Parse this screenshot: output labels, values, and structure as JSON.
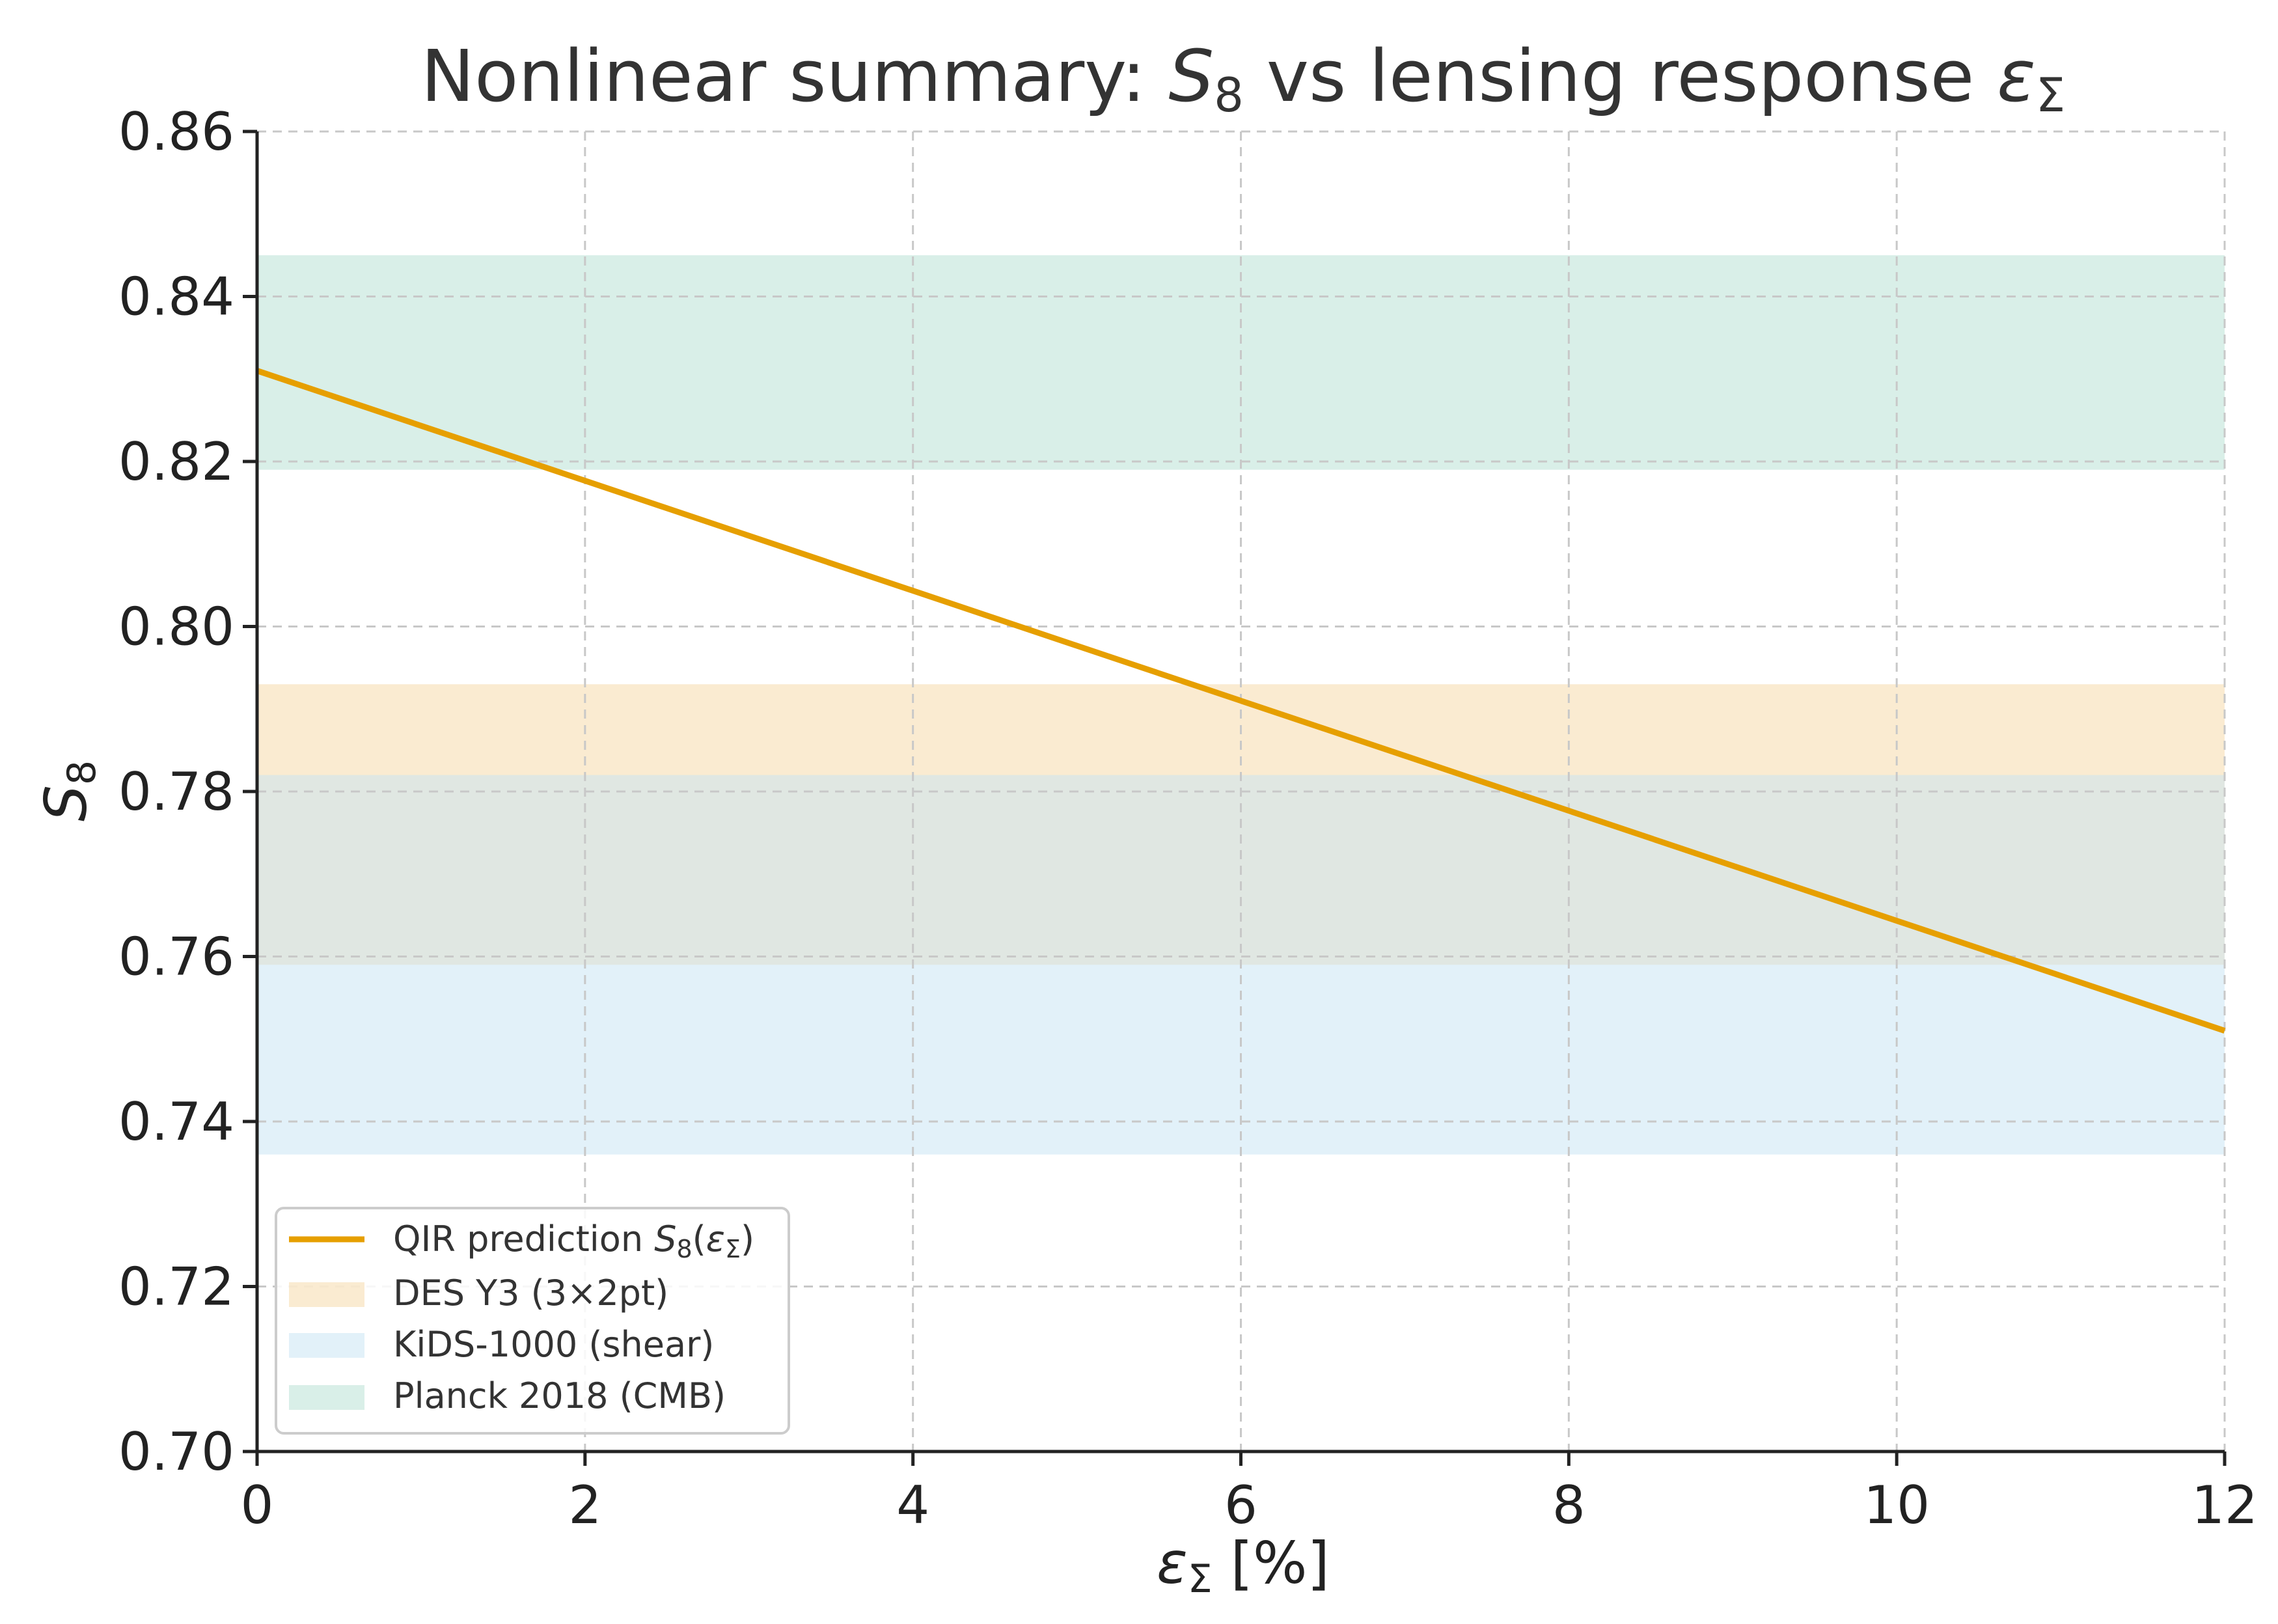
{
  "chart_data": {
    "type": "line",
    "title": {
      "prefix": "Nonlinear summary: ",
      "s_symbol": "S",
      "s_subscript": "8",
      "middle": " vs lensing response ",
      "eps_symbol": "ε",
      "eps_subscript": "Σ"
    },
    "xlabel": {
      "symbol": "ε",
      "subscript": "Σ",
      "suffix": " [%]"
    },
    "ylabel": {
      "symbol": "S",
      "subscript": "8"
    },
    "xlim": [
      0,
      12
    ],
    "ylim": [
      0.7,
      0.86
    ],
    "xticks": [
      0,
      2,
      4,
      6,
      8,
      10,
      12
    ],
    "xtick_labels": [
      "0",
      "2",
      "4",
      "6",
      "8",
      "10",
      "12"
    ],
    "yticks": [
      0.7,
      0.72,
      0.74,
      0.76,
      0.78,
      0.8,
      0.82,
      0.84,
      0.86
    ],
    "ytick_labels": [
      "0.70",
      "0.72",
      "0.74",
      "0.76",
      "0.78",
      "0.80",
      "0.82",
      "0.84",
      "0.86"
    ],
    "grid": true,
    "series": [
      {
        "name": "QIR prediction",
        "legend_prefix": "QIR prediction ",
        "legend_s": "S",
        "legend_s_sub": "8",
        "legend_open": "(",
        "legend_eps": "ε",
        "legend_eps_sub": "Σ",
        "legend_close": ")",
        "x": [
          0,
          12
        ],
        "y": [
          0.831,
          0.751
        ],
        "color": "#e69f00"
      }
    ],
    "bands": [
      {
        "name": "DES Y3 (3×2pt)",
        "ymin": 0.759,
        "ymax": 0.793,
        "color": "#f5d8a3"
      },
      {
        "name": "KiDS-1000 (shear)",
        "ymin": 0.736,
        "ymax": 0.782,
        "color": "#c5e4f3"
      },
      {
        "name": "Planck 2018 (CMB)",
        "ymin": 0.819,
        "ymax": 0.845,
        "color": "#b3e0d2"
      }
    ],
    "band_opacity": 0.5,
    "legend_position": "lower-left"
  }
}
